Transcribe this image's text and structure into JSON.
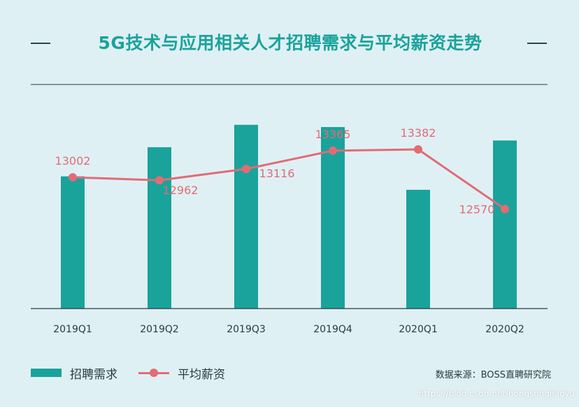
{
  "title": "5G技术与应用相关人才招聘需求与平均薪资走势",
  "source": "数据来源：BOSS直聘研究院",
  "watermark": "https://blog.csdn.net/hongsongjiaoyu",
  "colors": {
    "bar": "#19a39b",
    "line": "#e26b76",
    "title": "#1aa39c",
    "background": "#dff0f4"
  },
  "chart_data": {
    "type": "bar",
    "categories": [
      "2019Q1",
      "2019Q2",
      "2019Q3",
      "2019Q4",
      "2020Q1",
      "2020Q2"
    ],
    "bar_relative": [
      0.59,
      0.72,
      0.82,
      0.81,
      0.53,
      0.75
    ],
    "series": [
      {
        "name": "招聘需求",
        "type": "bar"
      },
      {
        "name": "平均薪资",
        "type": "line",
        "values": [
          13002,
          12962,
          13116,
          13365,
          13382,
          12570
        ]
      }
    ],
    "data_labels": [
      "13002",
      "12962",
      "13116",
      "13365",
      "13382",
      "12570"
    ],
    "legend": "bottom-left",
    "grid": false
  }
}
